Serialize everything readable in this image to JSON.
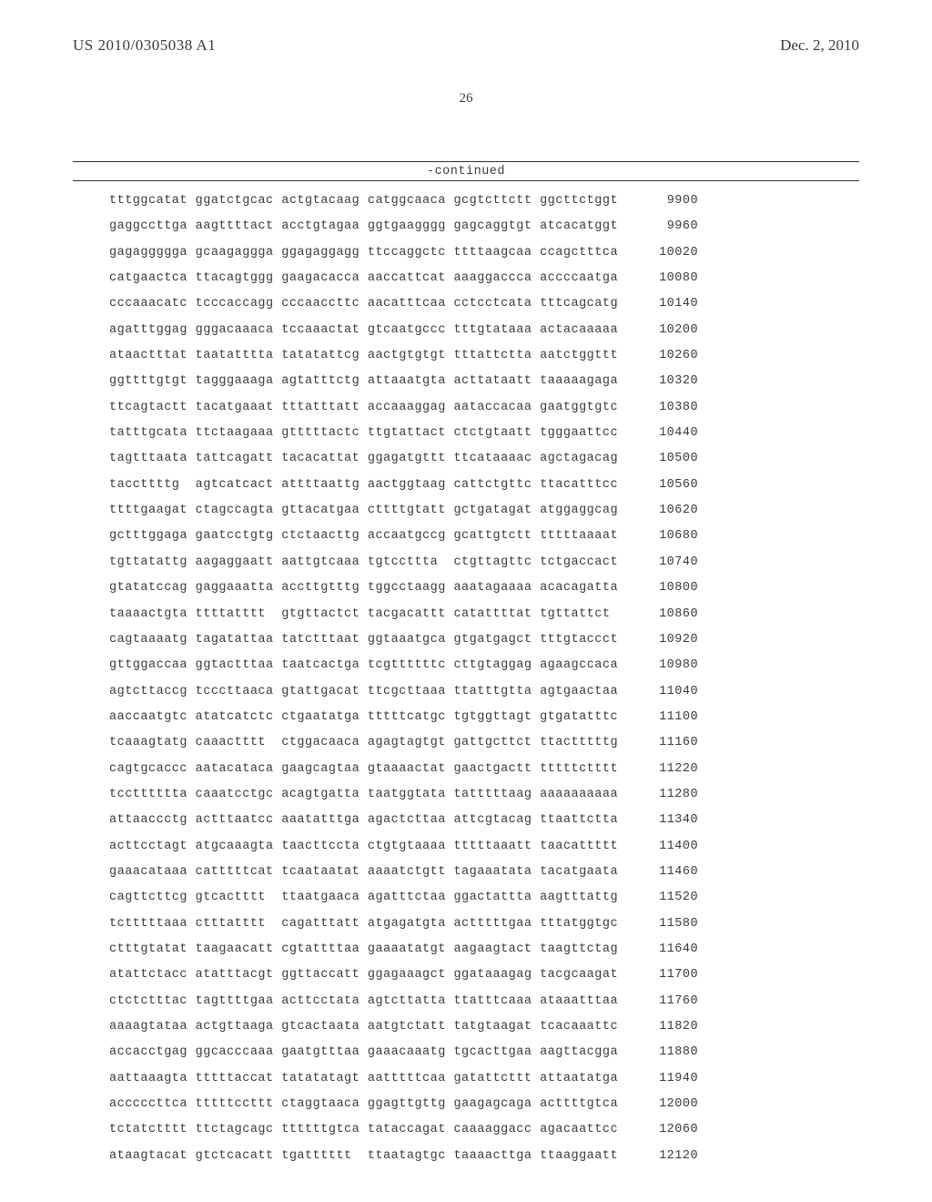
{
  "header": {
    "publication_number": "US 2010/0305038 A1",
    "publication_date": "Dec. 2, 2010"
  },
  "page_number": "26",
  "continued_label": "-continued",
  "sequence": {
    "rows": [
      {
        "groups": [
          "tttggcatat",
          "ggatctgcac",
          "actgtacaag",
          "catggcaaca",
          "gcgtcttctt",
          "ggcttctggt"
        ],
        "pos": "9900"
      },
      {
        "groups": [
          "gaggccttga",
          "aagttttact",
          "acctgtagaa",
          "ggtgaagggg",
          "gagcaggtgt",
          "atcacatggt"
        ],
        "pos": "9960"
      },
      {
        "groups": [
          "gagaggggga",
          "gcaagaggga",
          "ggagaggagg",
          "ttccaggctc",
          "ttttaagcaa",
          "ccagctttca"
        ],
        "pos": "10020"
      },
      {
        "groups": [
          "catgaactca",
          "ttacagtggg",
          "gaagacacca",
          "aaccattcat",
          "aaaggaccca",
          "accccaatga"
        ],
        "pos": "10080"
      },
      {
        "groups": [
          "cccaaacatc",
          "tcccaccagg",
          "cccaaccttc",
          "aacatttcaa",
          "cctcctcata",
          "tttcagcatg"
        ],
        "pos": "10140"
      },
      {
        "groups": [
          "agatttggag",
          "gggacaaaca",
          "tccaaactat",
          "gtcaatgccc",
          "tttgtataaa",
          "actacaaaaa"
        ],
        "pos": "10200"
      },
      {
        "groups": [
          "ataactttat",
          "taatatttta",
          "tatatattcg",
          "aactgtgtgt",
          "tttattctta",
          "aatctggttt"
        ],
        "pos": "10260"
      },
      {
        "groups": [
          "ggttttgtgt",
          "tagggaaaga",
          "agtatttctg",
          "attaaatgta",
          "acttataatt",
          "taaaaagaga"
        ],
        "pos": "10320"
      },
      {
        "groups": [
          "ttcagtactt",
          "tacatgaaat",
          "tttatttatt",
          "accaaaggag",
          "aataccacaa",
          "gaatggtgtc"
        ],
        "pos": "10380"
      },
      {
        "groups": [
          "tatttgcata",
          "ttctaagaaa",
          "gtttttactc",
          "ttgtattact",
          "ctctgtaatt",
          "tgggaattcc"
        ],
        "pos": "10440"
      },
      {
        "groups": [
          "tagtttaata",
          "tattcagatt",
          "tacacattat",
          "ggagatgttt",
          "ttcataaaac",
          "agctagacag"
        ],
        "pos": "10500"
      },
      {
        "groups": [
          "taccttttg",
          "agtcatcact",
          "attttaattg",
          "aactggtaag",
          "cattctgttc",
          "ttacatttcc"
        ],
        "pos": "10560"
      },
      {
        "groups": [
          "ttttgaagat",
          "ctagccagta",
          "gttacatgaa",
          "cttttgtatt",
          "gctgatagat",
          "atggaggcag"
        ],
        "pos": "10620"
      },
      {
        "groups": [
          "gctttggaga",
          "gaatcctgtg",
          "ctctaacttg",
          "accaatgccg",
          "gcattgtctt",
          "tttttaaaat"
        ],
        "pos": "10680"
      },
      {
        "groups": [
          "tgttatattg",
          "aagaggaatt",
          "aattgtcaaa",
          "tgtccttta",
          "ctgttagttc",
          "tctgaccact"
        ],
        "pos": "10740"
      },
      {
        "groups": [
          "gtatatccag",
          "gaggaaatta",
          "accttgtttg",
          "tggcctaagg",
          "aaatagaaaa",
          "acacagatta"
        ],
        "pos": "10800"
      },
      {
        "groups": [
          "taaaactgta",
          "ttttatttt",
          "gtgttactct",
          "tacgacattt",
          "catattttat",
          "tgttattct"
        ],
        "pos": "10860"
      },
      {
        "groups": [
          "cagtaaaatg",
          "tagatattaa",
          "tatctttaat",
          "ggtaaatgca",
          "gtgatgagct",
          "tttgtaccct"
        ],
        "pos": "10920"
      },
      {
        "groups": [
          "gttggaccaa",
          "ggtactttaa",
          "taatcactga",
          "tcgttttttc",
          "cttgtaggag",
          "agaagccaca"
        ],
        "pos": "10980"
      },
      {
        "groups": [
          "agtcttaccg",
          "tcccttaaca",
          "gtattgacat",
          "ttcgcttaaa",
          "ttatttgtta",
          "agtgaactaa"
        ],
        "pos": "11040"
      },
      {
        "groups": [
          "aaccaatgtc",
          "atatcatctc",
          "ctgaatatga",
          "tttttcatgc",
          "tgtggttagt",
          "gtgatatttc"
        ],
        "pos": "11100"
      },
      {
        "groups": [
          "tcaaagtatg",
          "caaactttt",
          "ctggacaaca",
          "agagtagtgt",
          "gattgcttct",
          "ttactttttg"
        ],
        "pos": "11160"
      },
      {
        "groups": [
          "cagtgcaccc",
          "aatacataca",
          "gaagcagtaa",
          "gtaaaactat",
          "gaactgactt",
          "tttttctttt"
        ],
        "pos": "11220"
      },
      {
        "groups": [
          "tcctttttta",
          "caaatcctgc",
          "acagtgatta",
          "taatggtata",
          "tatttttaag",
          "aaaaaaaaaa"
        ],
        "pos": "11280"
      },
      {
        "groups": [
          "attaaccctg",
          "actttaatcc",
          "aaatatttga",
          "agactcttaa",
          "attcgtacag",
          "ttaattctta"
        ],
        "pos": "11340"
      },
      {
        "groups": [
          "acttcctagt",
          "atgcaaagta",
          "taacttccta",
          "ctgtgtaaaa",
          "tttttaaatt",
          "taacattttt"
        ],
        "pos": "11400"
      },
      {
        "groups": [
          "gaaacataaa",
          "catttttcat",
          "tcaataatat",
          "aaaatctgtt",
          "tagaaatata",
          "tacatgaata"
        ],
        "pos": "11460"
      },
      {
        "groups": [
          "cagttcttcg",
          "gtcactttt",
          "ttaatgaaca",
          "agatttctaa",
          "ggactattta",
          "aagtttattg"
        ],
        "pos": "11520"
      },
      {
        "groups": [
          "tctttttaaa",
          "ctttatttt",
          "cagatttatt",
          "atgagatgta",
          "actttttgaa",
          "tttatggtgc"
        ],
        "pos": "11580"
      },
      {
        "groups": [
          "ctttgtatat",
          "taagaacatt",
          "cgtattttaa",
          "gaaaatatgt",
          "aagaagtact",
          "taagttctag"
        ],
        "pos": "11640"
      },
      {
        "groups": [
          "atattctacc",
          "atatttacgt",
          "ggttaccatt",
          "ggagaaagct",
          "ggataaagag",
          "tacgcaagat"
        ],
        "pos": "11700"
      },
      {
        "groups": [
          "ctctctttac",
          "tagttttgaa",
          "acttcctata",
          "agtcttatta",
          "ttatttcaaa",
          "ataaatttaa"
        ],
        "pos": "11760"
      },
      {
        "groups": [
          "aaaagtataa",
          "actgttaaga",
          "gtcactaata",
          "aatgtctatt",
          "tatgtaagat",
          "tcacaaattc"
        ],
        "pos": "11820"
      },
      {
        "groups": [
          "accacctgag",
          "ggcacccaaa",
          "gaatgtttaa",
          "gaaacaaatg",
          "tgcacttgaa",
          "aagttacgga"
        ],
        "pos": "11880"
      },
      {
        "groups": [
          "aattaaagta",
          "tttttaccat",
          "tatatatagt",
          "aatttttcaa",
          "gatattcttt",
          "attaatatga"
        ],
        "pos": "11940"
      },
      {
        "groups": [
          "acccccttca",
          "tttttccttt",
          "ctaggtaaca",
          "ggagttgttg",
          "gaagagcaga",
          "acttttgtca"
        ],
        "pos": "12000"
      },
      {
        "groups": [
          "tctatctttt",
          "ttctagcagc",
          "ttttttgtca",
          "tataccagat",
          "caaaaggacc",
          "agacaattcc"
        ],
        "pos": "12060"
      },
      {
        "groups": [
          "ataagtacat",
          "gtctcacatt",
          "tgatttttt",
          "ttaatagtgc",
          "taaaacttga",
          "ttaaggaatt"
        ],
        "pos": "12120"
      }
    ]
  }
}
